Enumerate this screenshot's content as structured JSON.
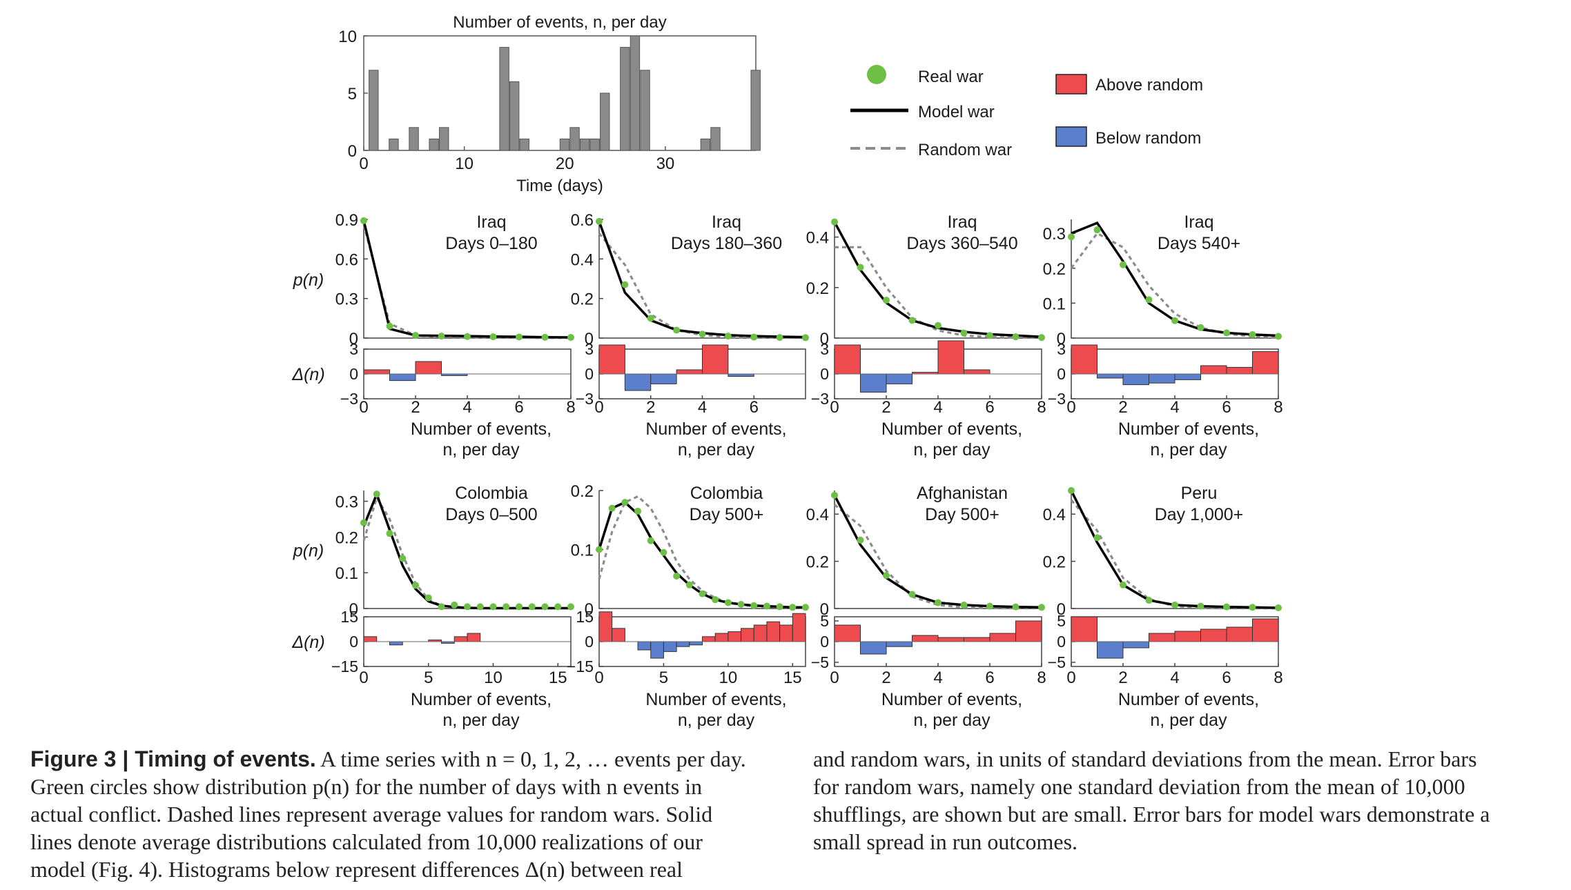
{
  "caption": {
    "left_lines": [
      "A time series with n = 0, 1, 2, … events per day.",
      "Green circles show distribution p(n) for the number of days with n events in",
      "actual conflict. Dashed lines represent average values for random wars. Solid",
      "lines denote average distributions calculated from 10,000 realizations of our",
      "model (Fig. 4). Histograms below represent differences Δ(n) between real"
    ],
    "lead": "Figure 3 | Timing of events.",
    "right_lines": [
      "and random wars, in units of standard deviations from the mean. Error bars",
      "for random wars, namely one standard deviation from the mean of 10,000",
      "shufflings, are shown but are small. Error bars for model wars demonstrate a",
      "small spread in run outcomes."
    ]
  },
  "legend": {
    "real": "Real war",
    "model": "Model war",
    "random": "Random war",
    "above": "Above random",
    "below": "Below random"
  },
  "colors": {
    "real": "#6dbf45",
    "model": "#000000",
    "random": "#8c8c8c",
    "above": "#ee4b4f",
    "below": "#5b7fcc",
    "bar": "#8a8a8a"
  },
  "chart_data": [
    {
      "type": "bar",
      "title": "Number of events, n, per day",
      "xlabel": "Time (days)",
      "xlim": [
        0,
        39
      ],
      "ylim": [
        0,
        10
      ],
      "xticks": [
        0,
        10,
        20,
        30
      ],
      "yticks": [
        0,
        5,
        10
      ],
      "x": [
        1,
        2,
        3,
        4,
        5,
        6,
        7,
        8,
        9,
        10,
        11,
        12,
        13,
        14,
        15,
        16,
        17,
        18,
        19,
        20,
        21,
        22,
        23,
        24,
        25,
        26,
        27,
        28,
        29,
        30,
        31,
        32,
        33,
        34,
        35,
        36,
        37,
        38,
        39
      ],
      "values": [
        7,
        0,
        1,
        0,
        2,
        0,
        1,
        2,
        0,
        0,
        0,
        0,
        0,
        9,
        6,
        1,
        0,
        0,
        0,
        1,
        2,
        1,
        1,
        5,
        0,
        9,
        10,
        7,
        0,
        0,
        0,
        0,
        0,
        1,
        2,
        0,
        0,
        0,
        7
      ]
    },
    {
      "type": "line",
      "title": [
        "Iraq",
        "Days 0–180"
      ],
      "ylabel": "p(n)",
      "dlabel": "Δ(n)",
      "xlabel": [
        "Number of events,",
        "n, per day"
      ],
      "xlim": [
        0,
        8
      ],
      "xticks": [
        0,
        2,
        4,
        6,
        8
      ],
      "ylim": [
        0,
        0.9
      ],
      "yticks": [
        0,
        0.3,
        0.6,
        0.9
      ],
      "dlim": [
        -3,
        3
      ],
      "dticks": [
        -3,
        0,
        3
      ],
      "real": [
        0.89,
        0.09,
        0.02,
        0.015,
        0.012,
        0.01,
        0.008,
        0.006,
        0.005
      ],
      "model": [
        0.89,
        0.07,
        0.02,
        0.018,
        0.015,
        0.012,
        0.01,
        0.007,
        0.005
      ],
      "random": [
        0.86,
        0.11,
        0.02,
        0.01,
        0.005,
        0.003,
        0.002,
        0.001,
        0.001
      ],
      "delta": [
        0.5,
        -0.8,
        1.5,
        -0.2,
        0,
        0,
        0,
        0
      ]
    },
    {
      "type": "line",
      "title": [
        "Iraq",
        "Days 180–360"
      ],
      "ylabel": "",
      "dlabel": "",
      "xlabel": [
        "Number of events,",
        "n, per day"
      ],
      "xlim": [
        0,
        8
      ],
      "xticks": [
        0,
        2,
        4,
        6
      ],
      "ylim": [
        0,
        0.6
      ],
      "yticks": [
        0,
        0.2,
        0.4,
        0.6
      ],
      "dlim": [
        -3,
        3
      ],
      "dticks": [
        -3,
        0,
        3
      ],
      "real": [
        0.59,
        0.27,
        0.1,
        0.04,
        0.02,
        0.01,
        0.005,
        0.003,
        0.002
      ],
      "model": [
        0.59,
        0.23,
        0.09,
        0.04,
        0.025,
        0.015,
        0.01,
        0.007,
        0.005
      ],
      "random": [
        0.53,
        0.37,
        0.12,
        0.04,
        0.015,
        0.006,
        0.003,
        0.002,
        0.001
      ],
      "delta": [
        3.5,
        -2,
        -1.2,
        0.5,
        3.5,
        -0.3,
        0,
        0
      ]
    },
    {
      "type": "line",
      "title": [
        "Iraq",
        "Days 360–540"
      ],
      "ylabel": "",
      "dlabel": "",
      "xlabel": [
        "Number of events,",
        "n, per day"
      ],
      "xlim": [
        0,
        8
      ],
      "xticks": [
        0,
        2,
        4,
        6,
        8
      ],
      "ylim": [
        0,
        0.47
      ],
      "yticks": [
        0,
        0.2,
        0.4
      ],
      "dlim": [
        -3,
        3
      ],
      "dticks": [
        -3,
        0,
        3
      ],
      "real": [
        0.46,
        0.28,
        0.15,
        0.07,
        0.05,
        0.02,
        0.01,
        0.005,
        0.002
      ],
      "model": [
        0.46,
        0.27,
        0.14,
        0.07,
        0.04,
        0.025,
        0.015,
        0.01,
        0.005
      ],
      "random": [
        0.36,
        0.36,
        0.2,
        0.08,
        0.03,
        0.01,
        0.004,
        0.002,
        0.001
      ],
      "delta": [
        3.5,
        -2.2,
        -1.2,
        0.2,
        4,
        0.5,
        0,
        0
      ]
    },
    {
      "type": "line",
      "title": [
        "Iraq",
        "Days 540+"
      ],
      "ylabel": "",
      "dlabel": "",
      "xlabel": [
        "Number of events,",
        "n, per day"
      ],
      "xlim": [
        0,
        8
      ],
      "xticks": [
        0,
        2,
        4,
        6,
        8
      ],
      "ylim": [
        0,
        0.34
      ],
      "yticks": [
        0,
        0.1,
        0.2,
        0.3
      ],
      "dlim": [
        -3,
        3
      ],
      "dticks": [
        -3,
        0,
        3
      ],
      "real": [
        0.29,
        0.31,
        0.21,
        0.11,
        0.05,
        0.03,
        0.015,
        0.01,
        0.005
      ],
      "model": [
        0.3,
        0.33,
        0.22,
        0.1,
        0.05,
        0.025,
        0.015,
        0.01,
        0.007
      ],
      "random": [
        0.2,
        0.3,
        0.26,
        0.15,
        0.07,
        0.03,
        0.012,
        0.005,
        0.002
      ],
      "delta": [
        3.5,
        -0.5,
        -1.3,
        -1.1,
        -0.7,
        1,
        0.8,
        2.7
      ]
    },
    {
      "type": "line",
      "title": [
        "Colombia",
        "Days 0–500"
      ],
      "ylabel": "p(n)",
      "dlabel": "Δ(n)",
      "xlabel": [
        "Number of events,",
        "n, per day"
      ],
      "xlim": [
        0,
        16
      ],
      "xticks": [
        0,
        5,
        10,
        15
      ],
      "ylim": [
        0,
        0.33
      ],
      "yticks": [
        0,
        0.1,
        0.2,
        0.3
      ],
      "dlim": [
        -15,
        15
      ],
      "dticks": [
        -15,
        0,
        15
      ],
      "real": [
        0.24,
        0.32,
        0.21,
        0.14,
        0.065,
        0.03,
        0.005,
        0.01,
        0.005,
        0.005,
        0.005,
        0.005,
        0.005,
        0.005,
        0.005,
        0.005,
        0.005
      ],
      "model": [
        0.23,
        0.32,
        0.22,
        0.12,
        0.055,
        0.02,
        0.008,
        0.004,
        0.002,
        0.001,
        0.001,
        0.001,
        0.001,
        0.001,
        0.001,
        0.001,
        0.001
      ],
      "random": [
        0.19,
        0.31,
        0.25,
        0.15,
        0.07,
        0.025,
        0.008,
        0.003,
        0.001,
        0.001,
        0.001,
        0.001,
        0.001,
        0.001,
        0.001,
        0.001,
        0.001
      ],
      "delta": [
        3,
        0,
        -2,
        0,
        0,
        1,
        -1,
        3,
        5,
        0,
        0,
        0,
        0,
        0,
        0,
        0
      ]
    },
    {
      "type": "line",
      "title": [
        "Colombia",
        "Day 500+"
      ],
      "ylabel": "",
      "dlabel": "",
      "xlabel": [
        "Number of events,",
        "n, per day"
      ],
      "xlim": [
        0,
        16
      ],
      "xticks": [
        0,
        5,
        10,
        15
      ],
      "ylim": [
        0,
        0.2
      ],
      "yticks": [
        0,
        0.1,
        0.2
      ],
      "dlim": [
        -15,
        15
      ],
      "dticks": [
        -15,
        0,
        15
      ],
      "real": [
        0.1,
        0.17,
        0.18,
        0.165,
        0.115,
        0.095,
        0.055,
        0.04,
        0.025,
        0.015,
        0.01,
        0.007,
        0.005,
        0.004,
        0.003,
        0.002,
        0.002
      ],
      "model": [
        0.1,
        0.17,
        0.18,
        0.16,
        0.12,
        0.09,
        0.06,
        0.04,
        0.025,
        0.015,
        0.01,
        0.007,
        0.005,
        0.004,
        0.003,
        0.002,
        0.002
      ],
      "random": [
        0.05,
        0.13,
        0.18,
        0.19,
        0.17,
        0.13,
        0.08,
        0.05,
        0.03,
        0.018,
        0.01,
        0.006,
        0.004,
        0.003,
        0.002,
        0.001,
        0.001
      ],
      "delta": [
        18,
        8,
        0,
        -5,
        -10,
        -6,
        -3,
        -2,
        3,
        5,
        6,
        8,
        10,
        12,
        10,
        17
      ]
    },
    {
      "type": "line",
      "title": [
        "Afghanistan",
        "Day 500+"
      ],
      "ylabel": "",
      "dlabel": "",
      "xlabel": [
        "Number of events,",
        "n, per day"
      ],
      "xlim": [
        0,
        8
      ],
      "xticks": [
        0,
        2,
        4,
        6,
        8
      ],
      "ylim": [
        0,
        0.5
      ],
      "yticks": [
        0,
        0.2,
        0.4
      ],
      "dlim": [
        -6,
        6
      ],
      "dticks": [
        -5,
        0,
        5
      ],
      "real": [
        0.48,
        0.29,
        0.14,
        0.06,
        0.025,
        0.015,
        0.01,
        0.007,
        0.005
      ],
      "model": [
        0.48,
        0.27,
        0.13,
        0.06,
        0.025,
        0.015,
        0.01,
        0.007,
        0.005
      ],
      "random": [
        0.44,
        0.35,
        0.16,
        0.05,
        0.015,
        0.005,
        0.002,
        0.001,
        0.001
      ],
      "delta": [
        4,
        -3,
        -1.2,
        1.5,
        1,
        1,
        2,
        5
      ]
    },
    {
      "type": "line",
      "title": [
        "Peru",
        "Day 1,000+"
      ],
      "ylabel": "",
      "dlabel": "",
      "xlabel": [
        "Number of events,",
        "n, per day"
      ],
      "xlim": [
        0,
        8
      ],
      "xticks": [
        0,
        2,
        4,
        6,
        8
      ],
      "ylim": [
        0,
        0.5
      ],
      "yticks": [
        0,
        0.2,
        0.4
      ],
      "dlim": [
        -6,
        6
      ],
      "dticks": [
        -5,
        0,
        5
      ],
      "real": [
        0.5,
        0.3,
        0.1,
        0.035,
        0.015,
        0.01,
        0.007,
        0.005,
        0.003
      ],
      "model": [
        0.5,
        0.28,
        0.1,
        0.035,
        0.015,
        0.01,
        0.007,
        0.005,
        0.003
      ],
      "random": [
        0.46,
        0.33,
        0.13,
        0.04,
        0.01,
        0.003,
        0.001,
        0.001,
        0.001
      ],
      "delta": [
        6,
        -4,
        -1.5,
        2,
        2.5,
        3,
        3.5,
        5.5
      ]
    }
  ]
}
